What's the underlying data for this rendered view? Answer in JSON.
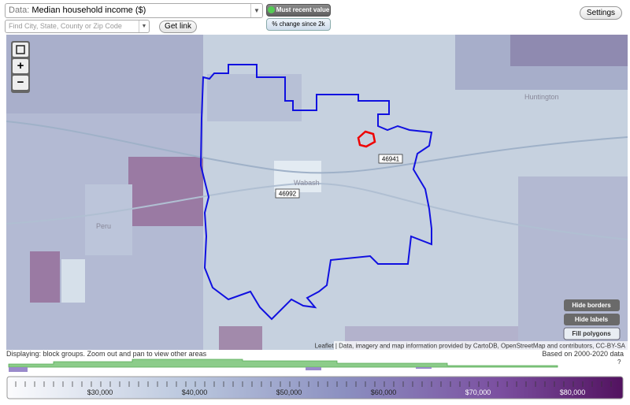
{
  "toolbar": {
    "data_label": "Data:",
    "data_value": "Median household income ($)",
    "search_placeholder": "Find City, State, County or Zip Code",
    "get_link": "Get link",
    "most_recent": "Must recent value",
    "change_since": "% change since 2k",
    "settings": "Settings"
  },
  "map": {
    "zoom_in": "+",
    "zoom_out": "−",
    "zip_labels": [
      "46992",
      "46941"
    ],
    "places": [
      "Wabash",
      "Peru",
      "Huntington"
    ],
    "buttons": [
      "Hide borders",
      "Hide labels",
      "Fill polygons"
    ],
    "attribution": "Leaflet | Data, imagery and map information provided by CartoDB, OpenStreetMap and contributors, CC-BY-SA"
  },
  "status": {
    "displaying": "Displaying: block groups. Zoom out and pan to view other areas",
    "based_on": "Based on 2000-2020 data",
    "help": "?"
  },
  "legend": {
    "scale_labels": [
      "$30,000",
      "$40,000",
      "$50,000",
      "$60,000",
      "$70,000",
      "$80,000"
    ]
  }
}
